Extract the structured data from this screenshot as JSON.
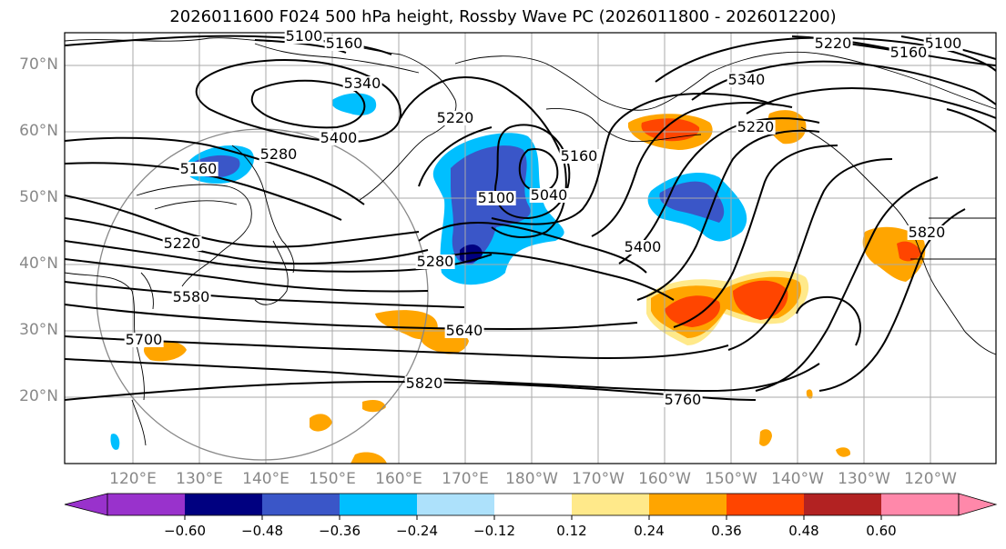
{
  "title": "2026011600 F024 500 hPa height, Rossby Wave PC (2026011800 - 2026012200)",
  "lat_labels": [
    "70°N",
    "60°N",
    "50°N",
    "40°N",
    "30°N",
    "20°N"
  ],
  "lon_labels": [
    "120°E",
    "130°E",
    "140°E",
    "150°E",
    "160°E",
    "170°E",
    "180°W",
    "170°W",
    "160°W",
    "150°W",
    "140°W",
    "130°W",
    "120°W"
  ],
  "contour_labels": [
    "5100",
    "5160",
    "5220",
    "5100",
    "5160",
    "5340",
    "5400",
    "5220",
    "5280",
    "5160",
    "5160",
    "5100",
    "5040",
    "5340",
    "5220",
    "5820",
    "5400",
    "5220",
    "5280",
    "5580",
    "5640",
    "5700",
    "5820",
    "5760"
  ],
  "colorbar": {
    "ticks": [
      "−0.60",
      "−0.48",
      "−0.36",
      "−0.24",
      "−0.12",
      "0.12",
      "0.24",
      "0.36",
      "0.48",
      "0.60"
    ],
    "colors": [
      "#9932CC",
      "#000080",
      "#3A56C8",
      "#00BFFF",
      "#ADE1FB",
      "#FFFFFF",
      "#FFE98A",
      "#FFA500",
      "#FF4500",
      "#B22222",
      "#FF88AA"
    ]
  },
  "colors": {
    "label_gray": "#888888",
    "grid": "#aaaaaa",
    "contour": "#000000"
  }
}
